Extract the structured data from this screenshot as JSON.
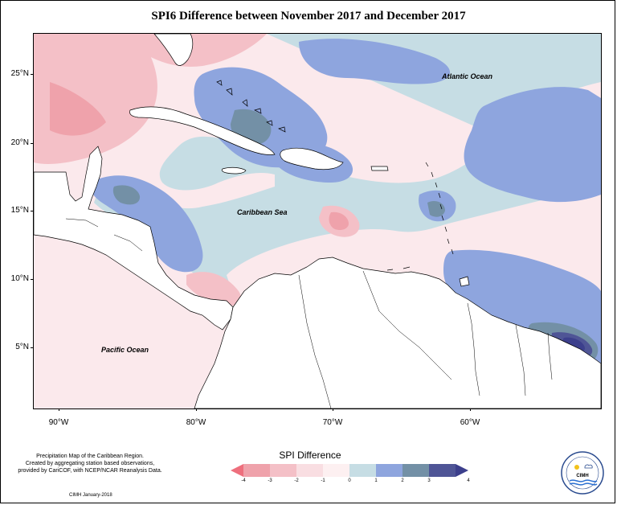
{
  "title": "SPI6 Difference between November 2017 and December 2017",
  "map": {
    "ocean_labels": {
      "atlantic": "Atlantic Ocean",
      "caribbean": "Caribbean Sea",
      "pacific": "Pacific Ocean"
    },
    "latitude_labels": [
      "25°N",
      "20°N",
      "15°N",
      "10°N",
      "5°N"
    ],
    "longitude_labels": [
      "90°W",
      "80°W",
      "70°W",
      "60°W"
    ],
    "colors": {
      "neg4": "#ee6f7d",
      "neg3": "#efa2ab",
      "neg2": "#f4c0c7",
      "neg1": "#f9dee2",
      "zero": "#fdf0f1",
      "pos0": "#c6dde4",
      "pos1": "#8ea5de",
      "pos2": "#7390a6",
      "pos3": "#4f5596",
      "pos4": "#3c3f8c",
      "land": "#ffffff",
      "coast": "#000000"
    }
  },
  "legend": {
    "title": "SPI Difference",
    "tick_labels": [
      "-4",
      "-3",
      "-2",
      "-1",
      "0",
      "1",
      "2",
      "3",
      "4"
    ],
    "swatches": [
      "#ee6f7d",
      "#efa2ab",
      "#f4c0c7",
      "#f9dee2",
      "#fdf0f1",
      "#c6dde4",
      "#8ea5de",
      "#7390a6",
      "#4f5596",
      "#3c3f8c"
    ]
  },
  "notes": {
    "line1": "Precipitation Map of the Caribbean Region.",
    "line2": "Created by aggregating station based observations,",
    "line3": "provided by CariCOF, with NCEP/NCAR Reanalysis Data.",
    "credit": "CIMH January-2018"
  },
  "logo": {
    "text": "CIMH"
  }
}
